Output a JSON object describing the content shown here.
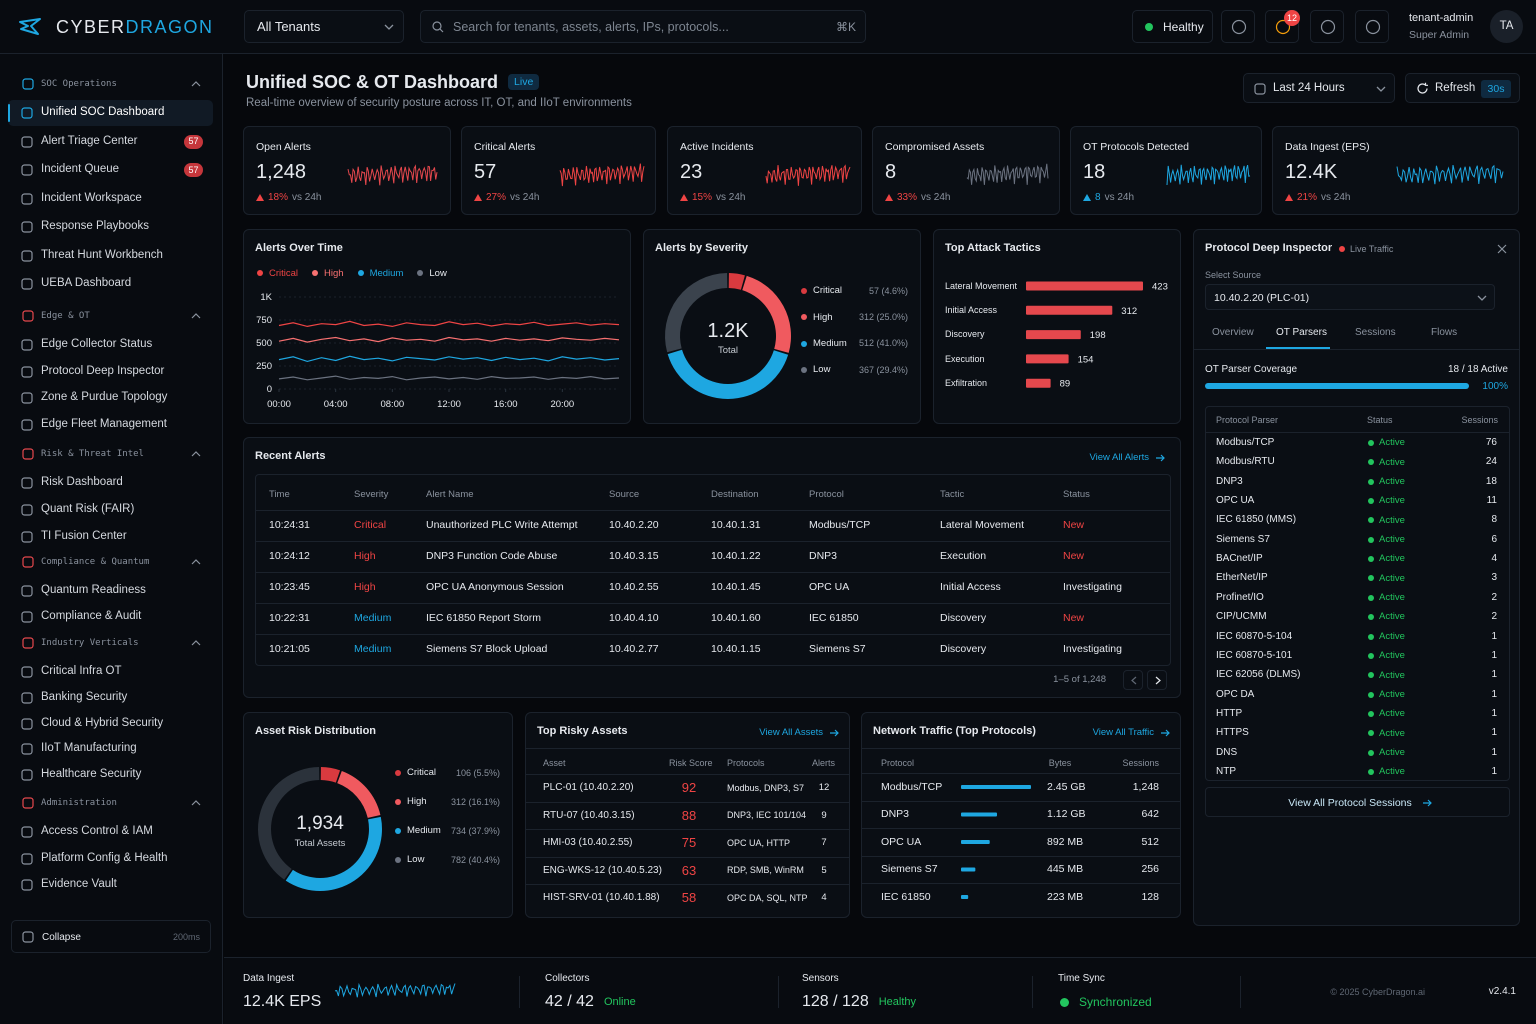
{
  "topbar": {
    "brand": {
      "part1": "CYBER",
      "part2": "DRAGON"
    },
    "tenant_select": "All Tenants",
    "search_placeholder": "Search for tenants, assets, alerts, IPs, protocols...",
    "search_shortcut": "⌘K",
    "health": "Healthy",
    "notifications": "12",
    "user": {
      "name": "tenant-admin",
      "role": "Super Admin",
      "initials": "TA"
    }
  },
  "sidebar": {
    "sections": [
      {
        "title": "SOC Operations",
        "items": [
          {
            "label": "Unified SOC Dashboard",
            "active": true
          },
          {
            "label": "Alert Triage Center",
            "badge": "57"
          },
          {
            "label": "Incident Queue",
            "badge": "57"
          },
          {
            "label": "Incident Workspace"
          },
          {
            "label": "Response Playbooks"
          },
          {
            "label": "Threat Hunt Workbench"
          },
          {
            "label": "UEBA Dashboard"
          }
        ]
      },
      {
        "title": "Edge & OT",
        "items": [
          {
            "label": "Edge Collector Status"
          },
          {
            "label": "Protocol Deep Inspector"
          },
          {
            "label": "Zone & Purdue Topology"
          },
          {
            "label": "Edge Fleet Management"
          }
        ]
      },
      {
        "title": "Risk & Threat Intel",
        "items": [
          {
            "label": "Risk Dashboard"
          },
          {
            "label": "Quant Risk (FAIR)"
          },
          {
            "label": "TI Fusion Center"
          }
        ]
      },
      {
        "title": "Compliance & Quantum",
        "items": [
          {
            "label": "Quantum Readiness"
          },
          {
            "label": "Compliance & Audit"
          }
        ]
      },
      {
        "title": "Industry Verticals",
        "items": [
          {
            "label": "Critical Infra OT"
          },
          {
            "label": "Banking Security"
          },
          {
            "label": "Cloud & Hybrid Security"
          },
          {
            "label": "IIoT Manufacturing"
          },
          {
            "label": "Healthcare Security"
          }
        ]
      },
      {
        "title": "Administration",
        "items": [
          {
            "label": "Access Control & IAM"
          },
          {
            "label": "Platform Config & Health"
          },
          {
            "label": "Evidence Vault"
          }
        ]
      }
    ],
    "collapse": {
      "label": "Collapse",
      "hint": "200ms"
    }
  },
  "header": {
    "title": "Unified SOC & OT Dashboard",
    "badge": "Live",
    "subtitle": "Real-time overview of security posture across IT, OT, and IIoT environments",
    "time_range": "Last 24 Hours",
    "refresh": "Refresh",
    "refresh_interval": "30s"
  },
  "kpis": [
    {
      "label": "Open Alerts",
      "value": "1,248",
      "change": "18%",
      "compare": "vs 24h",
      "color": "#e5484d",
      "trend_color": "#ef4444"
    },
    {
      "label": "Critical Alerts",
      "value": "57",
      "change": "27%",
      "compare": "vs 24h",
      "color": "#ef4444",
      "trend_color": "#ef4444"
    },
    {
      "label": "Active Incidents",
      "value": "23",
      "change": "15%",
      "compare": "vs 24h",
      "color": "#ef4444",
      "trend_color": "#ef4444"
    },
    {
      "label": "Compromised Assets",
      "value": "8",
      "change": "33%",
      "compare": "vs 24h",
      "color": "#6b7280",
      "trend_color": "#ef4444"
    },
    {
      "label": "OT Protocols Detected",
      "value": "18",
      "change": "8",
      "compare": "vs 24h",
      "color": "#1ea7e1",
      "trend_color": "#1ea7e1"
    },
    {
      "label": "Data Ingest (EPS)",
      "value": "12.4K",
      "change": "21%",
      "compare": "vs 24h",
      "color": "#1ea7e1",
      "trend_color": "#ef4444"
    }
  ],
  "chart_data": [
    {
      "type": "line",
      "title": "Alerts Over Time",
      "x": [
        0,
        1,
        2,
        3,
        4,
        5,
        6,
        7,
        8,
        9,
        10,
        11,
        12,
        13,
        14,
        15,
        16,
        17,
        18,
        19,
        20,
        21,
        22,
        23,
        24
      ],
      "xlim": [
        0,
        24
      ],
      "xticks": [
        {
          "value": 0,
          "label": "00:00"
        },
        {
          "value": 4,
          "label": "04:00"
        },
        {
          "value": 8,
          "label": "08:00"
        },
        {
          "value": 12,
          "label": "12:00"
        },
        {
          "value": 16,
          "label": "16:00"
        },
        {
          "value": 20,
          "label": "20:00"
        }
      ],
      "ylim": [
        0,
        1000
      ],
      "yticks": [
        0,
        250,
        500,
        750,
        {
          "value": 1000,
          "label": "1K"
        }
      ],
      "grid": true,
      "series": [
        {
          "name": "Critical",
          "color": "#ef4444",
          "values": [
            690,
            720,
            680,
            710,
            700,
            735,
            690,
            705,
            680,
            720,
            700,
            690,
            730,
            700,
            715,
            685,
            710,
            700,
            725,
            690,
            705,
            720,
            695,
            710,
            700
          ]
        },
        {
          "name": "High",
          "color": "#f87171",
          "values": [
            520,
            550,
            510,
            540,
            560,
            525,
            545,
            515,
            555,
            530,
            540,
            520,
            560,
            535,
            545,
            520,
            550,
            530,
            545,
            525,
            555,
            540,
            530,
            550,
            535
          ]
        },
        {
          "name": "Medium",
          "color": "#1ea7e1",
          "values": [
            320,
            350,
            300,
            340,
            310,
            355,
            320,
            335,
            305,
            345,
            330,
            315,
            350,
            325,
            340,
            310,
            345,
            320,
            335,
            305,
            350,
            325,
            340,
            315,
            330
          ]
        },
        {
          "name": "Low",
          "color": "#6b7280",
          "values": [
            110,
            130,
            100,
            120,
            140,
            105,
            125,
            115,
            135,
            100,
            120,
            130,
            110,
            125,
            105,
            135,
            115,
            120,
            130,
            105,
            125,
            115,
            135,
            110,
            120
          ]
        }
      ]
    },
    {
      "type": "pie",
      "title": "Alerts by Severity",
      "center_value": "1.2K",
      "center_label": "Total",
      "categories": [
        "Critical",
        "High",
        "Medium",
        "Low"
      ],
      "values": [
        57,
        312,
        512,
        367
      ],
      "value_labels": [
        "57 (4.6%)",
        "312 (25.0%)",
        "512 (41.0%)",
        "367 (29.4%)"
      ],
      "colors": [
        "#d93a3f",
        "#f05a5f",
        "#1ea7e1",
        "#3b434d"
      ]
    },
    {
      "type": "bar",
      "orientation": "horizontal",
      "title": "Top Attack Tactics",
      "categories": [
        "Lateral Movement",
        "Initial Access",
        "Discovery",
        "Execution",
        "Exfiltration"
      ],
      "values": [
        423,
        312,
        198,
        154,
        89
      ],
      "color": "#e5484d"
    },
    {
      "type": "pie",
      "title": "Asset Risk Distribution",
      "center_value": "1,934",
      "center_label": "Total Assets",
      "categories": [
        "Critical",
        "High",
        "Medium",
        "Low"
      ],
      "values": [
        106,
        312,
        734,
        782
      ],
      "value_labels": [
        "106 (5.5%)",
        "312 (16.1%)",
        "734 (37.9%)",
        "782 (40.4%)"
      ],
      "colors": [
        "#d93a3f",
        "#f05a5f",
        "#1ea7e1",
        "#2b323b"
      ]
    }
  ],
  "recent_alerts": {
    "title": "Recent Alerts",
    "link": "View All Alerts",
    "columns": [
      "Time",
      "Severity",
      "Alert Name",
      "Source",
      "Destination",
      "Protocol",
      "Tactic",
      "Status"
    ],
    "rows": [
      {
        "cells": [
          "10:24:31",
          "Critical",
          "Unauthorized PLC Write Attempt",
          "10.40.2.20",
          "10.40.1.31",
          "Modbus/TCP",
          "Lateral Movement",
          "New"
        ],
        "severity_color": "#ef4444",
        "status_color": "#ef4444"
      },
      {
        "cells": [
          "10:24:12",
          "High",
          "DNP3 Function Code Abuse",
          "10.40.3.15",
          "10.40.1.22",
          "DNP3",
          "Execution",
          "New"
        ],
        "severity_color": "#ef4444",
        "status_color": "#ef4444"
      },
      {
        "cells": [
          "10:23:45",
          "High",
          "OPC UA Anonymous Session",
          "10.40.2.55",
          "10.40.1.45",
          "OPC UA",
          "Initial Access",
          "Investigating"
        ],
        "severity_color": "#ef4444",
        "status_color": "#e6e9ee"
      },
      {
        "cells": [
          "10:22:31",
          "Medium",
          "IEC 61850 Report Storm",
          "10.40.4.10",
          "10.40.1.60",
          "IEC 61850",
          "Discovery",
          "New"
        ],
        "severity_color": "#1ea7e1",
        "status_color": "#ef4444"
      },
      {
        "cells": [
          "10:21:05",
          "Medium",
          "Siemens S7 Block Upload",
          "10.40.2.77",
          "10.40.1.15",
          "Siemens S7",
          "Discovery",
          "Investigating"
        ],
        "severity_color": "#1ea7e1",
        "status_color": "#e6e9ee"
      }
    ],
    "pagination": "1–5 of 1,248"
  },
  "risky_assets": {
    "title": "Top Risky Assets",
    "link": "View All Assets",
    "columns": [
      "Asset",
      "Risk Score",
      "Protocols",
      "Alerts"
    ],
    "rows": [
      [
        "PLC-01 (10.40.2.20)",
        "92",
        "Modbus, DNP3, S7",
        "12"
      ],
      [
        "RTU-07 (10.40.3.15)",
        "88",
        "DNP3, IEC 101/104",
        "9"
      ],
      [
        "HMI-03 (10.40.2.55)",
        "75",
        "OPC UA, HTTP",
        "7"
      ],
      [
        "ENG-WKS-12 (10.40.5.23)",
        "63",
        "RDP, SMB, WinRM",
        "5"
      ],
      [
        "HIST-SRV-01 (10.40.1.88)",
        "58",
        "OPC DA, SQL, NTP",
        "4"
      ]
    ]
  },
  "network_traffic": {
    "title": "Network Traffic (Top Protocols)",
    "link": "View All Traffic",
    "columns": [
      "Protocol",
      "Bytes",
      "Sessions"
    ],
    "color": "#1ea7e1",
    "rows": [
      {
        "protocol": "Modbus/TCP",
        "bytes": "2.45 GB",
        "sessions": 1248,
        "sessions_label": "1,248"
      },
      {
        "protocol": "DNP3",
        "bytes": "1.12 GB",
        "sessions": 642,
        "sessions_label": "642"
      },
      {
        "protocol": "OPC UA",
        "bytes": "892 MB",
        "sessions": 512,
        "sessions_label": "512"
      },
      {
        "protocol": "Siemens S7",
        "bytes": "445 MB",
        "sessions": 256,
        "sessions_label": "256"
      },
      {
        "protocol": "IEC 61850",
        "bytes": "223 MB",
        "sessions": 128,
        "sessions_label": "128"
      }
    ]
  },
  "protocol_inspector": {
    "title": "Protocol Deep Inspector",
    "badge": "Live Traffic",
    "source_label": "Select Source",
    "source": "10.40.2.20 (PLC-01)",
    "tabs": [
      "Overview",
      "OT Parsers",
      "Sessions",
      "Flows"
    ],
    "active_tab": 1,
    "coverage": {
      "label": "OT Parser Coverage",
      "count": "18 / 18 Active",
      "value": 100,
      "value_label": "100%"
    },
    "columns": [
      "Protocol Parser",
      "Status",
      "Sessions"
    ],
    "rows": [
      [
        "Modbus/TCP",
        "Active",
        "76"
      ],
      [
        "Modbus/RTU",
        "Active",
        "24"
      ],
      [
        "DNP3",
        "Active",
        "18"
      ],
      [
        "OPC UA",
        "Active",
        "11"
      ],
      [
        "IEC 61850 (MMS)",
        "Active",
        "8"
      ],
      [
        "Siemens S7",
        "Active",
        "6"
      ],
      [
        "BACnet/IP",
        "Active",
        "4"
      ],
      [
        "EtherNet/IP",
        "Active",
        "3"
      ],
      [
        "Profinet/IO",
        "Active",
        "2"
      ],
      [
        "CIP/UCMM",
        "Active",
        "2"
      ],
      [
        "IEC 60870-5-104",
        "Active",
        "1"
      ],
      [
        "IEC 60870-5-101",
        "Active",
        "1"
      ],
      [
        "IEC 62056 (DLMS)",
        "Active",
        "1"
      ],
      [
        "OPC DA",
        "Active",
        "1"
      ],
      [
        "HTTP",
        "Active",
        "1"
      ],
      [
        "HTTPS",
        "Active",
        "1"
      ],
      [
        "DNS",
        "Active",
        "1"
      ],
      [
        "NTP",
        "Active",
        "1"
      ]
    ],
    "link": "View All Protocol Sessions"
  },
  "footer": {
    "items": [
      {
        "label": "Data Ingest",
        "value": "12.4K EPS"
      },
      {
        "label": "Collectors",
        "value": "42 / 42",
        "status": "Online"
      },
      {
        "label": "Sensors",
        "value": "128 / 128",
        "status": "Healthy"
      },
      {
        "label": "Time Sync",
        "status": "Synchronized"
      }
    ],
    "copyright": "© 2025 CyberDragon.ai",
    "version": "v2.4.1"
  }
}
